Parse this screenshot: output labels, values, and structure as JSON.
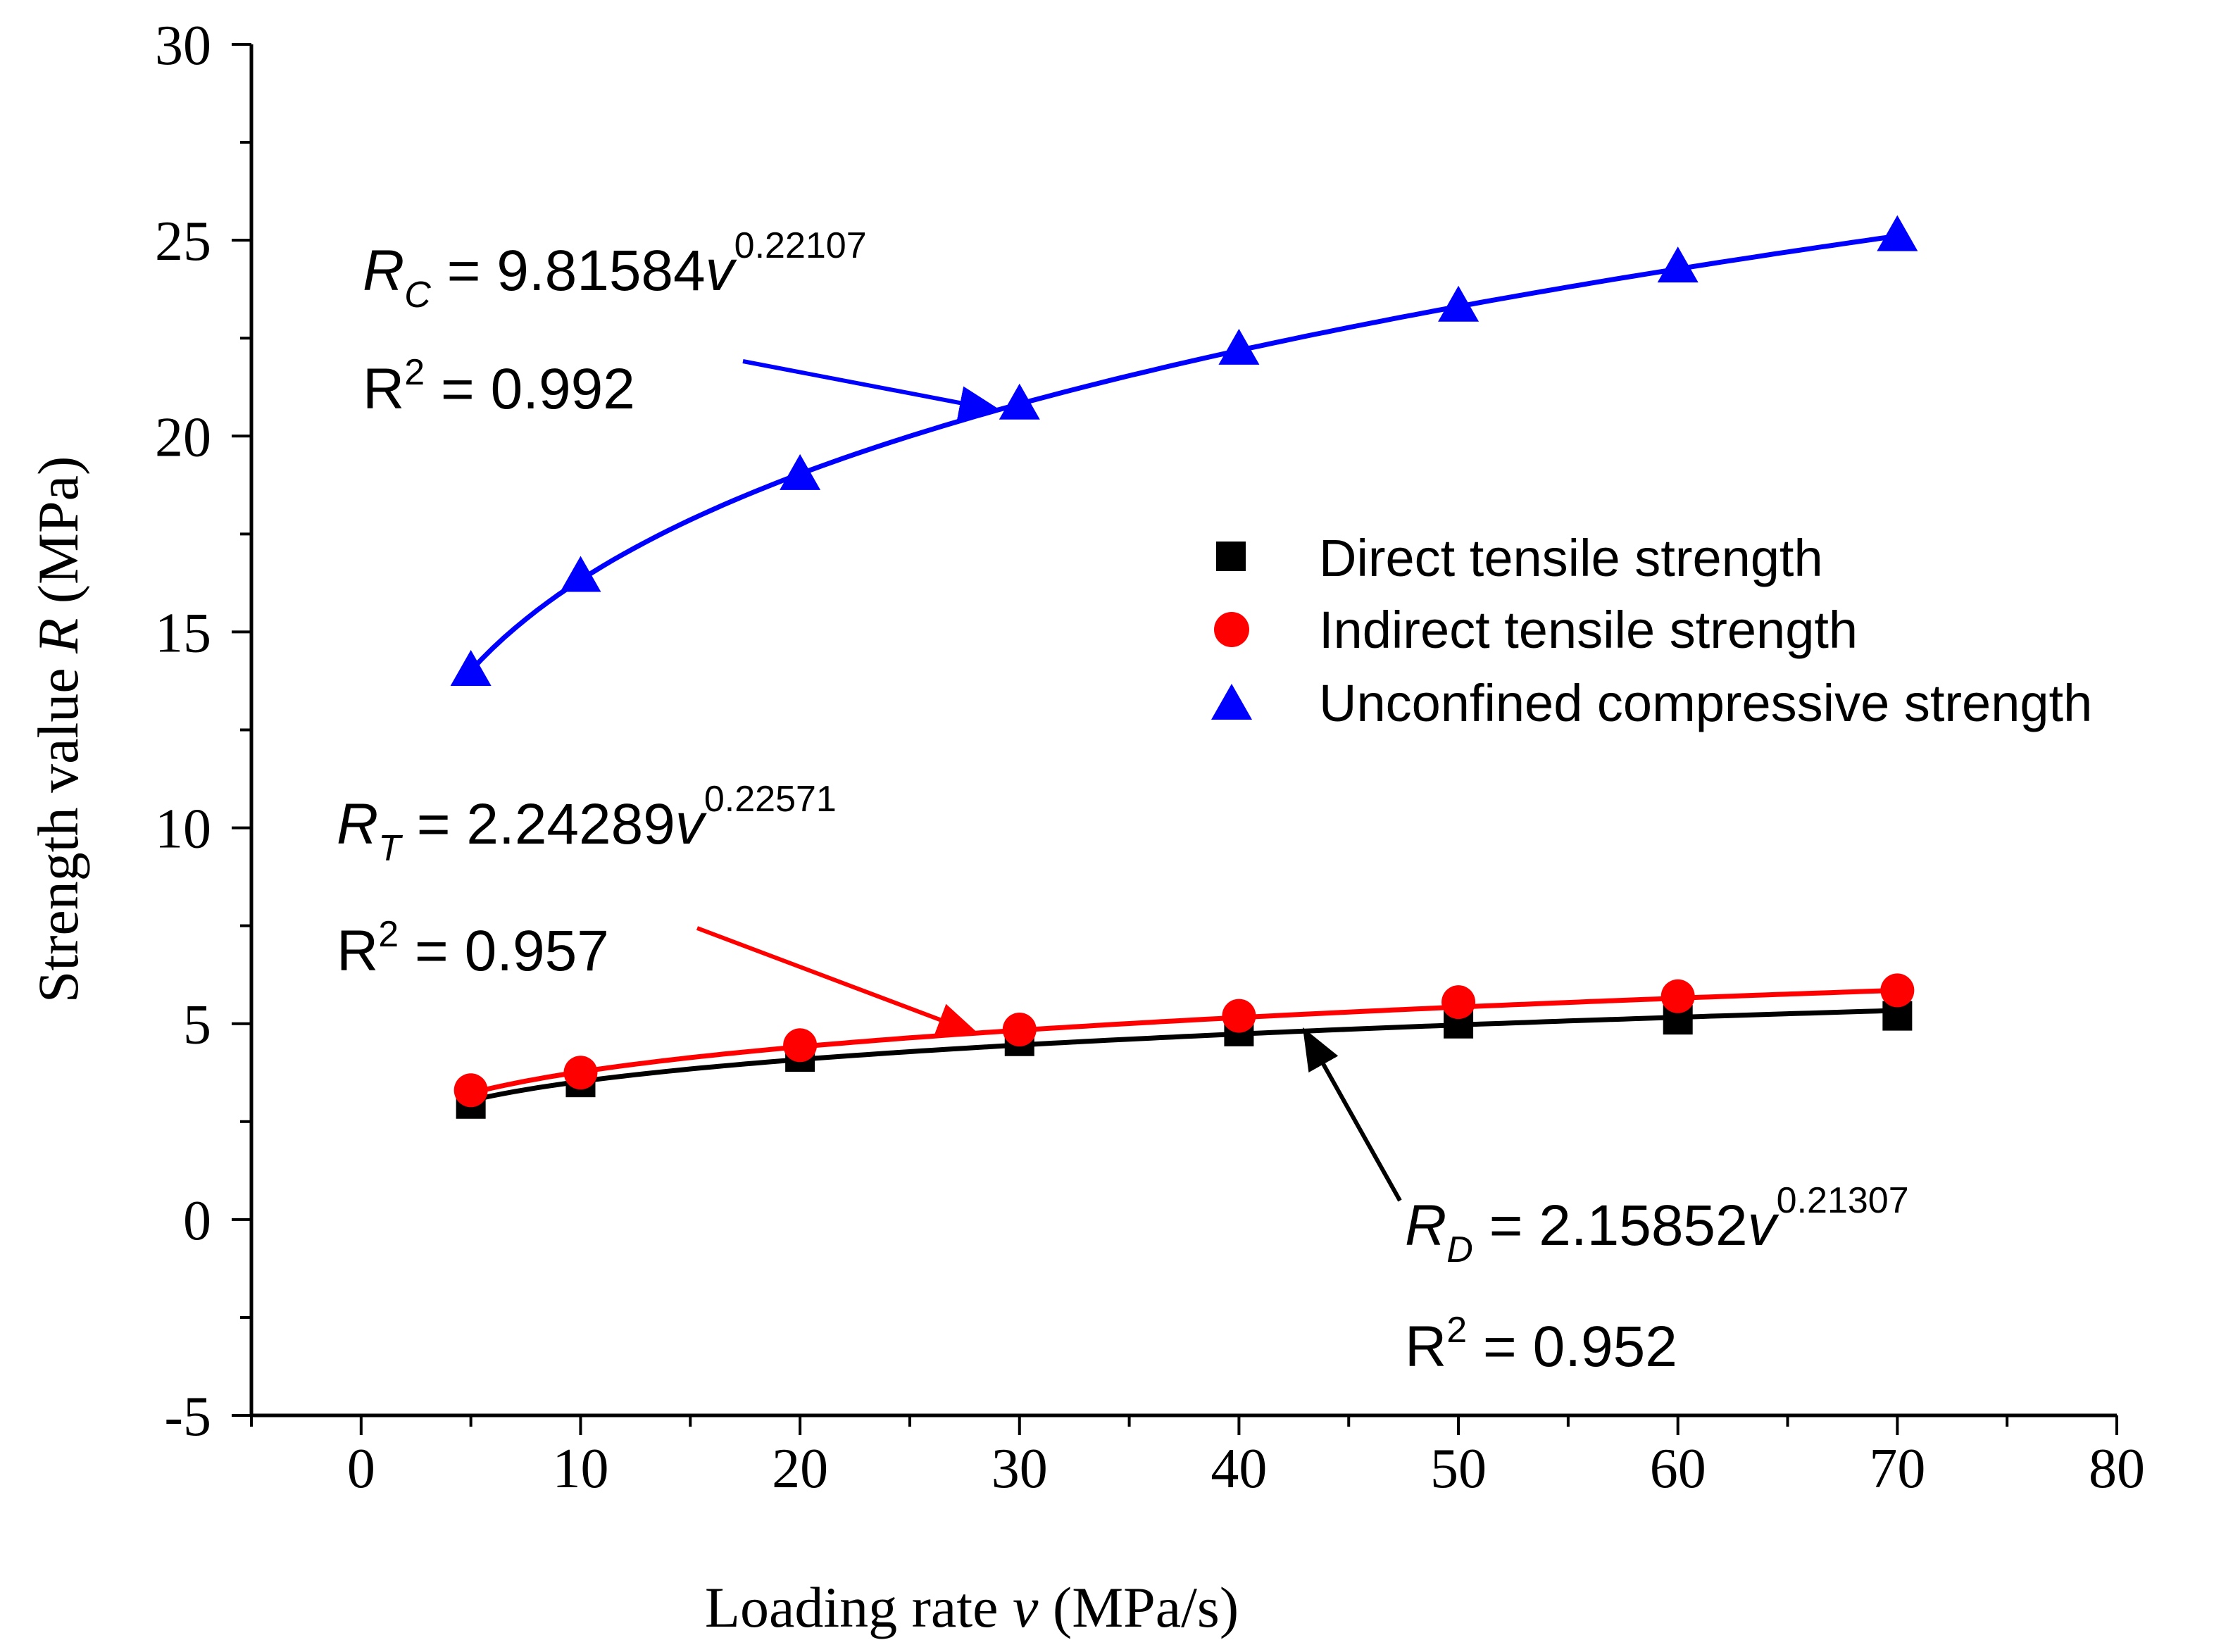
{
  "chart_data": {
    "type": "scatter",
    "xlabel": {
      "prefix": "Loading rate ",
      "var": "v",
      "suffix": " (MPa/s)"
    },
    "ylabel": {
      "prefix": "Strength value ",
      "var": "R",
      "suffix": " (MPa)"
    },
    "xlim": [
      -5,
      80
    ],
    "ylim": [
      -5,
      30
    ],
    "x_ticks": [
      0,
      10,
      20,
      30,
      40,
      50,
      60,
      70,
      80
    ],
    "y_ticks": [
      -5,
      0,
      5,
      10,
      15,
      20,
      25,
      30
    ],
    "x_tick_labels": [
      "0",
      "10",
      "20",
      "30",
      "40",
      "50",
      "60",
      "70",
      "80"
    ],
    "y_tick_labels": [
      "-5",
      "0",
      "5",
      "10",
      "15",
      "20",
      "25",
      "30"
    ],
    "grid": false,
    "legend_position": "right-middle",
    "x": [
      5,
      10,
      20,
      30,
      40,
      50,
      60,
      70
    ],
    "series": [
      {
        "name": "Direct tensile strength",
        "marker": "square",
        "color": "#000000",
        "values": [
          2.95,
          3.5,
          4.15,
          4.55,
          4.8,
          5.0,
          5.1,
          5.2
        ],
        "fit": {
          "a": 2.15852,
          "b": 0.21307
        }
      },
      {
        "name": "Indirect tensile strength",
        "marker": "circle",
        "color": "#ff0000",
        "values": [
          3.3,
          3.75,
          4.45,
          4.85,
          5.2,
          5.55,
          5.7,
          5.85
        ],
        "fit": {
          "a": 2.24289,
          "b": 0.22571
        }
      },
      {
        "name": "Unconfined compressive strength",
        "marker": "triangle",
        "color": "#0000ff",
        "values": [
          14.0,
          16.4,
          19.0,
          20.8,
          22.2,
          23.3,
          24.3,
          25.1
        ],
        "fit": {
          "a": 9.81584,
          "b": 0.22107
        }
      }
    ],
    "annotations": [
      {
        "id": "C",
        "sym": "R",
        "sub": "C",
        "eq": " = 9.81584",
        "var": "v",
        "exp": "0.22107",
        "r2_base": "R",
        "r2_exp": "2",
        "r2_val": " = 0.992",
        "color": "#0000ff",
        "target_x": 29
      },
      {
        "id": "T",
        "sym": "R",
        "sub": "T",
        "eq": " = 2.24289",
        "var": "v",
        "exp": "0.22571",
        "r2_base": "R",
        "r2_exp": "2",
        "r2_val": " = 0.957",
        "color": "#ff0000",
        "target_x": 28
      },
      {
        "id": "D",
        "sym": "R",
        "sub": "D",
        "eq": " = 2.15852",
        "var": "v",
        "exp": "0.21307",
        "r2_base": "R",
        "r2_exp": "2",
        "r2_val": " = 0.952",
        "color": "#000000",
        "target_x": 43
      }
    ]
  }
}
